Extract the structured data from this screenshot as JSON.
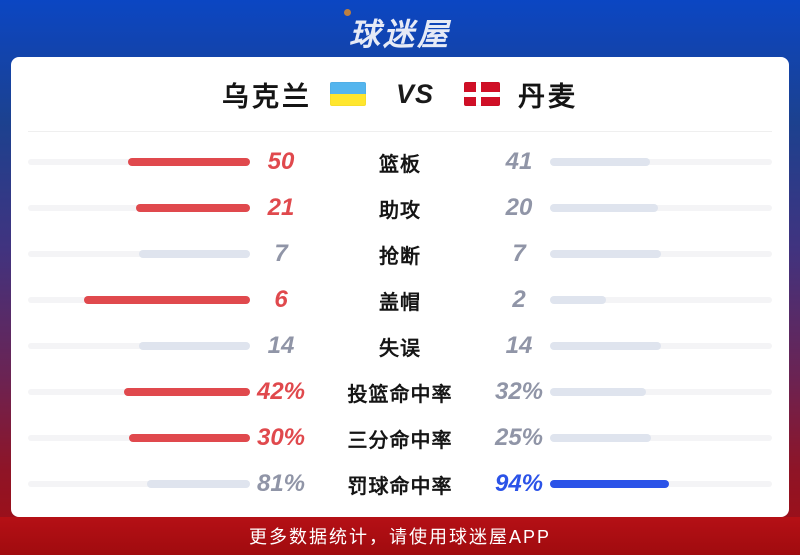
{
  "logo": {
    "text": "球迷屋"
  },
  "match": {
    "home_team": "乌克兰",
    "away_team": "丹麦",
    "vs_label": "VS",
    "home_flag": "ukraine-flag",
    "away_flag": "denmark-flag"
  },
  "chart_data": {
    "type": "bar",
    "layout": "mirrored-horizontal-comparison, fill length = value / (home + away), home bars grow right-to-left, away bars grow left-to-right",
    "categories": [
      "篮板",
      "助攻",
      "抢断",
      "盖帽",
      "失误",
      "投篮命中率",
      "三分命中率",
      "罚球命中率"
    ],
    "series": [
      {
        "name": "乌克兰",
        "values": [
          50,
          21,
          7,
          6,
          14,
          42,
          30,
          81
        ],
        "display": [
          "50",
          "21",
          "7",
          "6",
          "14",
          "42%",
          "30%",
          "81%"
        ]
      },
      {
        "name": "丹麦",
        "values": [
          41,
          20,
          7,
          2,
          14,
          32,
          25,
          94
        ],
        "display": [
          "41",
          "20",
          "7",
          "2",
          "14",
          "32%",
          "25%",
          "94%"
        ]
      }
    ],
    "highlight_rule": "higher value shown in team color (home red / away blue); loser and ties shown muted gray"
  },
  "colors": {
    "home_win": "#e0494d",
    "away_win": "#2b53e8",
    "neutral_fill": "#dfe4ee",
    "bar_track": "#f4f4f6",
    "value_muted": "#9095a7",
    "label_text": "#151515",
    "logo_dot": "#bd7f3f",
    "ua_top": "#54b5ee",
    "ua_bottom": "#ffe62e",
    "dk_red": "#d00f26"
  },
  "footer": {
    "text": "更多数据统计，请使用球迷屋APP"
  }
}
